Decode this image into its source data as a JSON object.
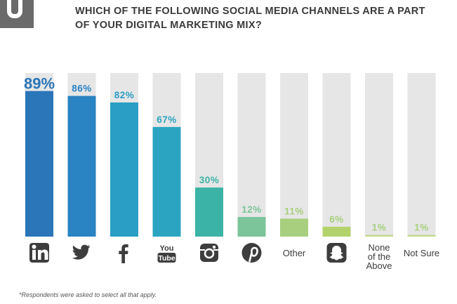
{
  "title": "WHICH OF THE FOLLOWING SOCIAL MEDIA CHANNELS ARE A PART OF YOUR DIGITAL MARKETING MIX?",
  "footnote": "*Respondents were asked to select all that apply.",
  "chart_data": {
    "type": "bar",
    "title": "WHICH OF THE FOLLOWING SOCIAL MEDIA CHANNELS ARE A PART OF YOUR DIGITAL MARKETING MIX?",
    "xlabel": "",
    "ylabel": "",
    "ylim": [
      0,
      100
    ],
    "grid": false,
    "legend": "none",
    "categories": [
      "LinkedIn",
      "Twitter",
      "Facebook",
      "YouTube",
      "Instagram",
      "Pinterest",
      "Other",
      "Snapchat",
      "None of the Above",
      "Not Sure"
    ],
    "values": [
      89,
      86,
      82,
      67,
      30,
      12,
      11,
      6,
      1,
      1
    ],
    "value_labels": [
      "89%",
      "86%",
      "82%",
      "67%",
      "30%",
      "12%",
      "11%",
      "6%",
      "1%",
      "1%"
    ],
    "tick_labels": [
      {
        "icon": "linkedin-icon",
        "text": ""
      },
      {
        "icon": "twitter-icon",
        "text": ""
      },
      {
        "icon": "facebook-icon",
        "text": ""
      },
      {
        "icon": "youtube-icon",
        "text": ""
      },
      {
        "icon": "instagram-icon",
        "text": ""
      },
      {
        "icon": "pinterest-icon",
        "text": ""
      },
      {
        "icon": "",
        "text": "Other"
      },
      {
        "icon": "snapchat-icon",
        "text": ""
      },
      {
        "icon": "",
        "text": "None of the Above"
      },
      {
        "icon": "",
        "text": "Not Sure"
      }
    ],
    "youtube_icon_text": [
      "You",
      "Tube"
    ],
    "colors": [
      "#2a76b8",
      "#2a83c2",
      "#2a9ec4",
      "#2aa4c0",
      "#3bb3a6",
      "#7cc49a",
      "#a7cf7e",
      "#b3d26a",
      "#c2d88a",
      "#c2d88a"
    ],
    "label_colors": [
      "#2a76b8",
      "#2a83c2",
      "#2a9ec4",
      "#2aa4c0",
      "#3bb3a6",
      "#7cc49a",
      "#a7cf7e",
      "#a7cf7e",
      "#a7cf7e",
      "#a7cf7e"
    ],
    "track_color": "#e6e6e6",
    "icon_color": "#3d3d3d"
  }
}
